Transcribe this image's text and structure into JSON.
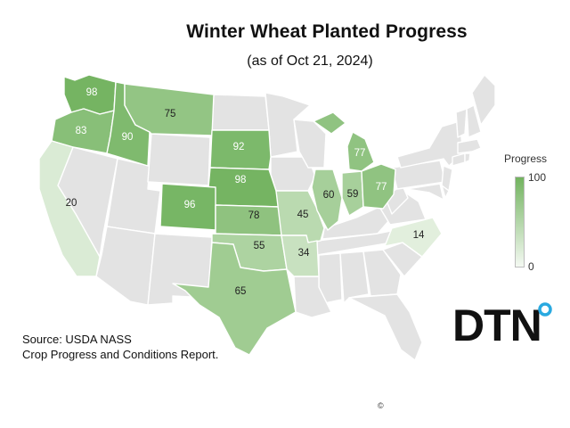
{
  "title": "Winter Wheat Planted Progress",
  "subtitle": "(as of Oct 21, 2024)",
  "legend": {
    "title": "Progress",
    "max_label": "100",
    "min_label": "0",
    "min": 0,
    "max": 100,
    "color_low": "#f4f9f2",
    "color_high": "#72b35f"
  },
  "source": {
    "line1": "Source: USDA NASS",
    "line2": "Crop Progress and Conditions Report."
  },
  "logo": {
    "text": "DTN",
    "ring_color": "#29a9e0"
  },
  "copyright": "©",
  "colors": {
    "no_data": "#e3e3e3",
    "label_dark": "#222222",
    "label_light": "#ffffff"
  },
  "states": [
    {
      "code": "WA",
      "value": 98,
      "label": "98"
    },
    {
      "code": "OR",
      "value": 83,
      "label": "83"
    },
    {
      "code": "ID",
      "value": 90,
      "label": "90"
    },
    {
      "code": "MT",
      "value": 75,
      "label": "75"
    },
    {
      "code": "CA",
      "value": 20,
      "label": "20"
    },
    {
      "code": "SD",
      "value": 92,
      "label": "92"
    },
    {
      "code": "NE",
      "value": 98,
      "label": "98"
    },
    {
      "code": "CO",
      "value": 96,
      "label": "96"
    },
    {
      "code": "KS",
      "value": 78,
      "label": "78"
    },
    {
      "code": "OK",
      "value": 55,
      "label": "55"
    },
    {
      "code": "TX",
      "value": 65,
      "label": "65"
    },
    {
      "code": "MO",
      "value": 45,
      "label": "45"
    },
    {
      "code": "AR",
      "value": 34,
      "label": "34"
    },
    {
      "code": "IL",
      "value": 60,
      "label": "60"
    },
    {
      "code": "IN",
      "value": 59,
      "label": "59"
    },
    {
      "code": "OH",
      "value": 77,
      "label": "77"
    },
    {
      "code": "MI",
      "value": 77,
      "label": "77"
    },
    {
      "code": "NC",
      "value": 14,
      "label": "14"
    }
  ]
}
